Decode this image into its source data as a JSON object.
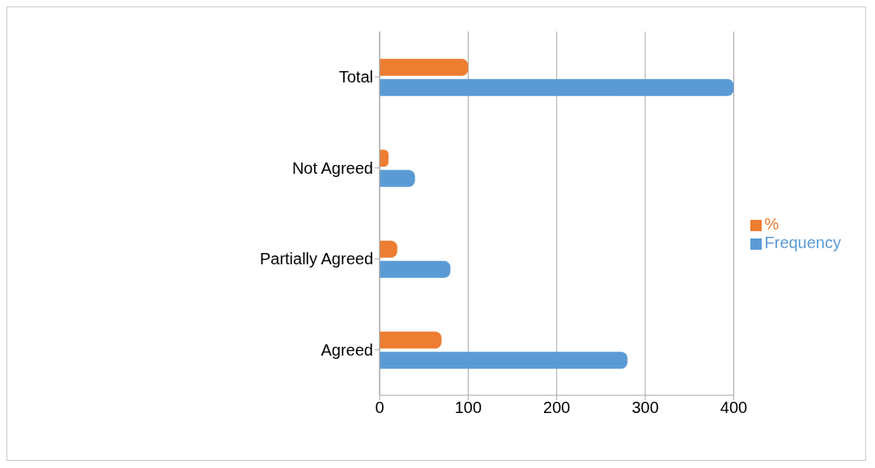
{
  "chart_data": {
    "type": "bar",
    "orientation": "horizontal",
    "categories": [
      "Total",
      "Not Agreed",
      "Partially Agreed",
      "Agreed"
    ],
    "series": [
      {
        "name": "%",
        "color": "#ed7d31",
        "values": [
          100,
          10,
          20,
          70
        ]
      },
      {
        "name": "Frequency",
        "color": "#5b9bd5",
        "values": [
          400,
          40,
          80,
          280
        ]
      }
    ],
    "xlim": [
      0,
      400
    ],
    "xticks": [
      0,
      100,
      200,
      300,
      400
    ],
    "grid": "x",
    "legend": "right"
  }
}
